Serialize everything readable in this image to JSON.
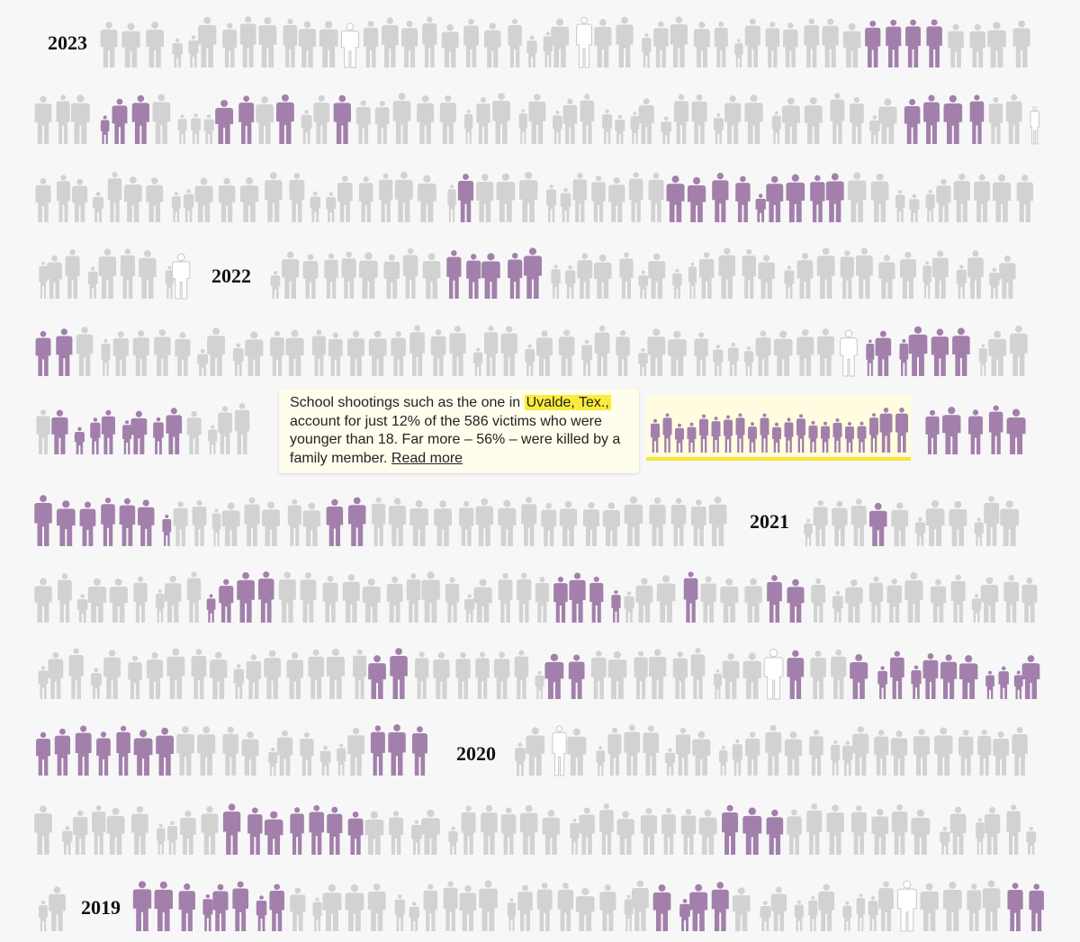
{
  "years": [
    "2023",
    "2022",
    "2021",
    "2020",
    "2019"
  ],
  "annotation": {
    "text_before": "School shootings such as the one in",
    "highlight": "Uvalde, Tex.,",
    "text_after": "account for just 12% of the 586 victims who were younger than 18. Far more – 56% – were killed by a family member.",
    "link": "Read more"
  }
}
